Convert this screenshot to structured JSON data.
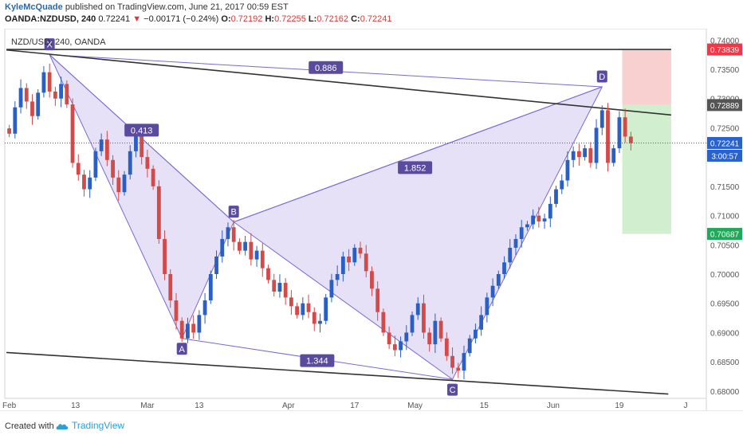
{
  "header": {
    "author": "KyleMcQuade",
    "published_text": "published on TradingView.com, June 21, 2017 00:59 EST",
    "symbol": "OANDA:NZDUSD, 240",
    "last": "0.72241",
    "change_arrow": "▼",
    "change": "−0.00171 (−0.24%)",
    "o_label": "O:",
    "o": "0.72192",
    "h_label": "H:",
    "h": "0.72255",
    "l_label": "L:",
    "l": "0.72162",
    "c_label": "C:",
    "c": "0.72241"
  },
  "footer": {
    "created_with": "Created with",
    "logo_text": "TradingView",
    "logo_icon": "tradingview-cloud-icon"
  },
  "chart_data": {
    "type": "candlestick",
    "title": "NZD/USD, 240, OANDA",
    "ylim": [
      0.6793,
      0.7414
    ],
    "y_ticks": [
      "0.74000",
      "0.73500",
      "0.73000",
      "0.72500",
      "0.72000",
      "0.71500",
      "0.71000",
      "0.70500",
      "0.70000",
      "0.69500",
      "0.69000",
      "0.68500",
      "0.68000"
    ],
    "x_ticks": [
      {
        "label": "Feb",
        "t": 0.5
      },
      {
        "label": "13",
        "t": 12
      },
      {
        "label": "Mar",
        "t": 24.5
      },
      {
        "label": "13",
        "t": 33.5
      },
      {
        "label": "Apr",
        "t": 49
      },
      {
        "label": "17",
        "t": 60.5
      },
      {
        "label": "May",
        "t": 71
      },
      {
        "label": "15",
        "t": 83
      },
      {
        "label": "Jun",
        "t": 95
      },
      {
        "label": "19",
        "t": 106.5
      },
      {
        "label": "J",
        "t": 118
      }
    ],
    "price_labels": [
      {
        "value": 0.73839,
        "text": "0.73839",
        "color": "#f23645"
      },
      {
        "value": 0.72889,
        "text": "0.72889",
        "color": "#555555"
      },
      {
        "value": 0.72241,
        "text": "0.72241",
        "color": "#2962cc"
      },
      {
        "value": 0.70687,
        "text": "0.70687",
        "color": "#22a85a"
      }
    ],
    "countdown": "3:00:57",
    "pattern": {
      "points": [
        {
          "label": "X",
          "t": 7.5,
          "y": 0.7375
        },
        {
          "label": "A",
          "t": 30.5,
          "y": 0.689
        },
        {
          "label": "B",
          "t": 39.5,
          "y": 0.7089
        },
        {
          "label": "C",
          "t": 77.5,
          "y": 0.682
        },
        {
          "label": "D",
          "t": 103.5,
          "y": 0.732
        }
      ],
      "ratios": [
        {
          "text": "0.886",
          "t": 55.5,
          "y": 0.7353
        },
        {
          "text": "0.413",
          "t": 23.5,
          "y": 0.7246
        },
        {
          "text": "1.852",
          "t": 71,
          "y": 0.7182
        },
        {
          "text": "1.344",
          "t": 54,
          "y": 0.6852
        }
      ],
      "fill_color": "#b9a9e8",
      "line_color": "#7a6ad0"
    },
    "trendlines": [
      {
        "t1": 0,
        "y1": 0.7383,
        "t2": 115.5,
        "y2": 0.7272,
        "color": "#333333"
      },
      {
        "t1": 0,
        "y1": 0.6866,
        "t2": 115,
        "y2": 0.6795,
        "color": "#333333"
      },
      {
        "t1": 0,
        "y1": 0.73839,
        "t2": 115.5,
        "y2": 0.73839,
        "color": "#333333"
      }
    ],
    "stop_zone": {
      "t1": 107,
      "t2": 115.5,
      "y1": 0.72889,
      "y2": 0.73839,
      "color": "#f8c8c8"
    },
    "target_zone": {
      "t1": 107,
      "t2": 115.5,
      "y1": 0.70687,
      "y2": 0.72889,
      "color": "#c9ecc6"
    },
    "last_price_line": {
      "value": 0.72241,
      "color": "#2962cc"
    },
    "up_color": "#2a5fc4",
    "down_color": "#d24a4a",
    "closes": [
      0.724,
      0.7285,
      0.7318,
      0.7295,
      0.727,
      0.731,
      0.7345,
      0.7312,
      0.73,
      0.7325,
      0.729,
      0.719,
      0.717,
      0.7145,
      0.7165,
      0.721,
      0.723,
      0.7195,
      0.7165,
      0.714,
      0.717,
      0.721,
      0.724,
      0.72,
      0.718,
      0.715,
      0.706,
      0.7,
      0.6955,
      0.692,
      0.689,
      0.6915,
      0.69,
      0.693,
      0.6955,
      0.7,
      0.703,
      0.706,
      0.708,
      0.7055,
      0.704,
      0.7055,
      0.7025,
      0.704,
      0.701,
      0.699,
      0.697,
      0.6985,
      0.696,
      0.6945,
      0.693,
      0.695,
      0.6935,
      0.6915,
      0.692,
      0.696,
      0.699,
      0.7,
      0.703,
      0.702,
      0.7045,
      0.7035,
      0.7005,
      0.6975,
      0.6935,
      0.69,
      0.688,
      0.687,
      0.6885,
      0.69,
      0.693,
      0.695,
      0.69,
      0.688,
      0.692,
      0.689,
      0.686,
      0.684,
      0.6835,
      0.6865,
      0.689,
      0.6905,
      0.693,
      0.696,
      0.698,
      0.7,
      0.702,
      0.7045,
      0.706,
      0.708,
      0.7085,
      0.71,
      0.709,
      0.7095,
      0.712,
      0.7145,
      0.716,
      0.7195,
      0.721,
      0.72,
      0.7215,
      0.719,
      0.725,
      0.728,
      0.719,
      0.7215,
      0.7268,
      0.7235,
      0.7224
    ]
  }
}
